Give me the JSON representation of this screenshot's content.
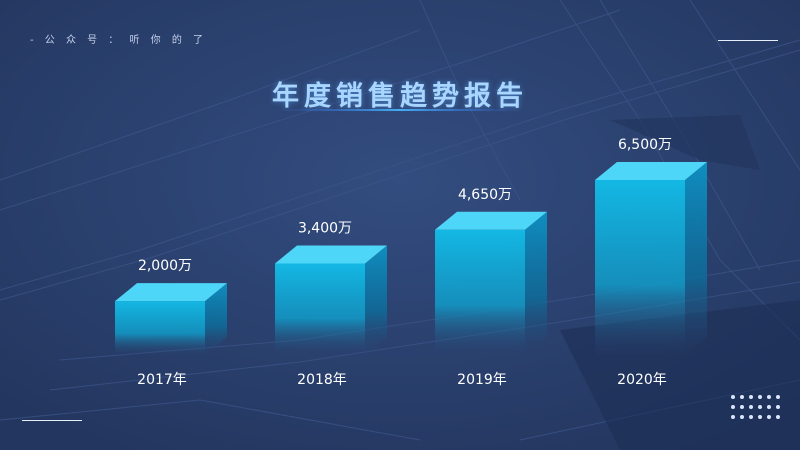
{
  "header": {
    "watermark": "- 公 众 号 ： 听 你 的 了",
    "title": "年度销售趋势报告"
  },
  "colors": {
    "background": "#2a3f6c",
    "bar_top": "#4dd6f7",
    "bar_front": "#12b3df",
    "bar_side": "#0e86b3",
    "label": "#ffffff",
    "title": "#a9d6ff"
  },
  "chart_data": {
    "type": "bar",
    "title": "年度销售趋势报告",
    "categories": [
      "2017年",
      "2018年",
      "2019年",
      "2020年"
    ],
    "values": [
      2000,
      3400,
      4650,
      6500
    ],
    "data_labels": [
      "2,000万",
      "3,400万",
      "4,650万",
      "6,500万"
    ],
    "unit": "万",
    "ylim": [
      0,
      6500
    ],
    "grid": false,
    "style": "3d-bar"
  }
}
